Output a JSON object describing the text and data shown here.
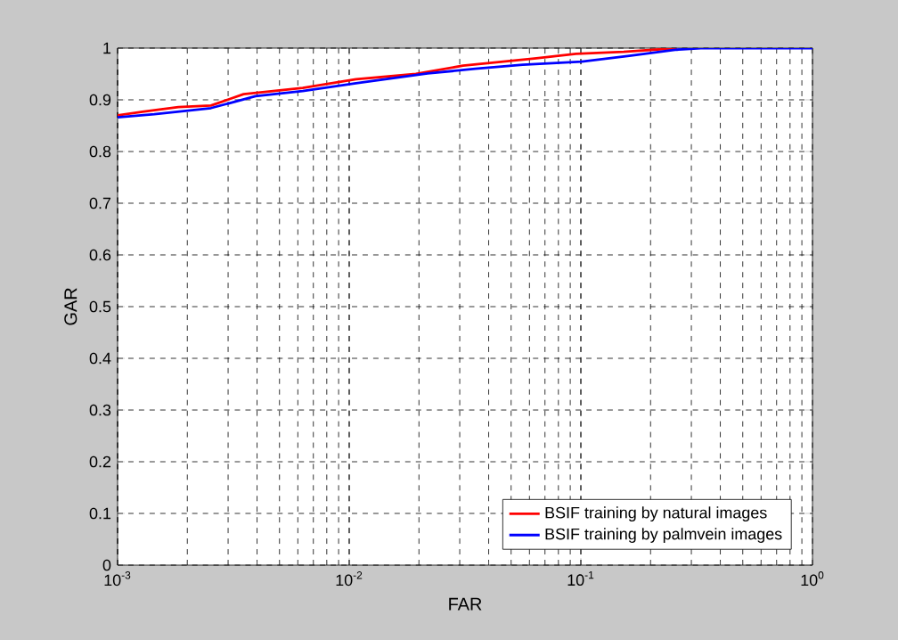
{
  "chart_data": {
    "type": "line",
    "xlabel": "FAR",
    "ylabel": "GAR",
    "log": "x",
    "grid": true,
    "legend": "bottom right",
    "line_style": "solid",
    "marker": "none",
    "xlim": [
      0.001,
      1
    ],
    "ylim": [
      0,
      1
    ],
    "xticks": [
      {
        "value": 0.001,
        "label": "10$^{-3}$"
      },
      {
        "value": 0.01,
        "label": "10$^{-2}$"
      },
      {
        "value": 0.1,
        "label": "10$^{-1}$"
      },
      {
        "value": 1,
        "label": "10$^{0}$"
      }
    ],
    "yticks": [
      0,
      0.1,
      0.2,
      0.3,
      0.4,
      0.5,
      0.6,
      0.7,
      0.8,
      0.9,
      1
    ],
    "series": [
      {
        "name": "BSIF training by natural images",
        "color": "#ff0000",
        "x": [
          0.001,
          0.00128,
          0.00183,
          0.00253,
          0.0035,
          0.0063,
          0.0107,
          0.0194,
          0.031,
          0.063,
          0.0953,
          0.153,
          0.26
        ],
        "values": [
          0.87,
          0.877,
          0.886,
          0.889,
          0.911,
          0.923,
          0.94,
          0.95,
          0.966,
          0.98,
          0.989,
          0.993,
          1.0
        ]
      },
      {
        "name": "BSIF training by palmvein images",
        "color": "#0000ff",
        "x": [
          0.001,
          0.00144,
          0.00253,
          0.00394,
          0.0063,
          0.0107,
          0.0218,
          0.035,
          0.0561,
          0.101,
          0.162,
          0.26,
          0.33,
          1
        ],
        "values": [
          0.866,
          0.872,
          0.884,
          0.907,
          0.917,
          0.932,
          0.951,
          0.96,
          0.968,
          0.974,
          0.985,
          0.997,
          1.0,
          1.0
        ]
      }
    ]
  }
}
